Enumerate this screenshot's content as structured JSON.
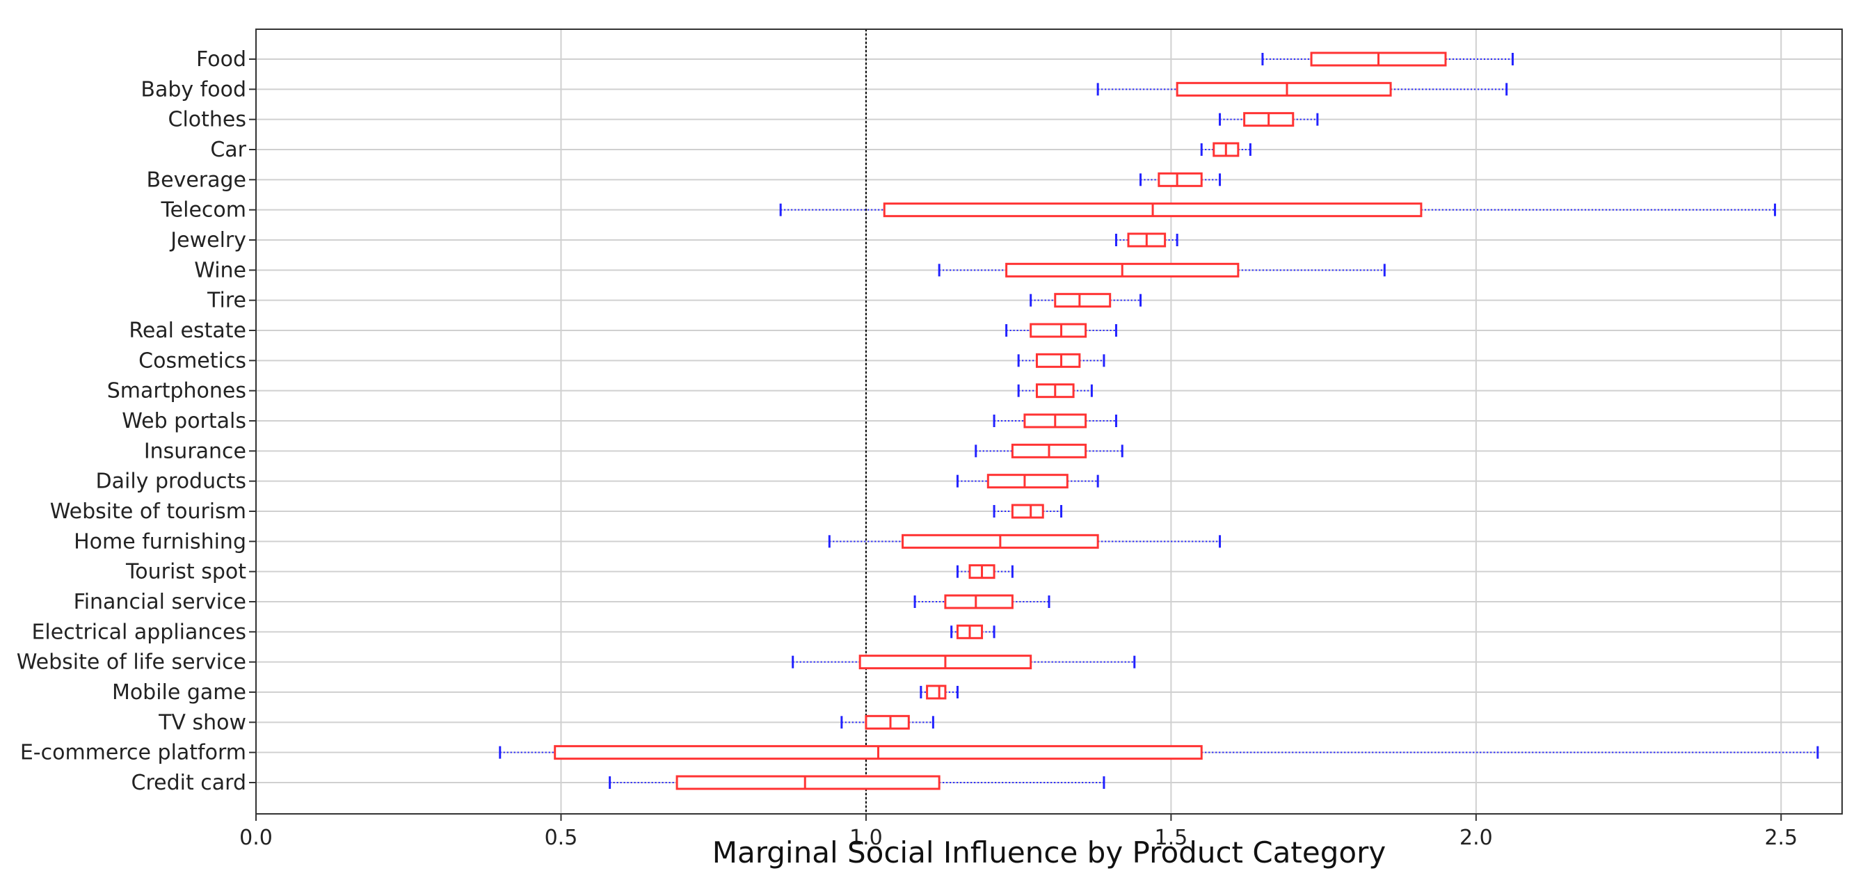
{
  "chart_data": {
    "type": "boxplot",
    "orientation": "horizontal",
    "xlabel": "Marginal Social Influence by Product Category",
    "ylabel": "",
    "xlim": [
      0.0,
      2.6
    ],
    "xticks": [
      0.0,
      0.5,
      1.0,
      1.5,
      2.0,
      2.5
    ],
    "xtick_labels": [
      "0.0",
      "0.5",
      "1.0",
      "1.5",
      "2.0",
      "2.5"
    ],
    "reference_line": 1.0,
    "grid": true,
    "colors": {
      "box": "#ff3333",
      "whisker": "#2222ff",
      "reference": "#000000",
      "grid": "#d0d0d0"
    },
    "categories": [
      {
        "label": "Food",
        "whislo": 1.65,
        "q1": 1.73,
        "med": 1.84,
        "q3": 1.95,
        "whishi": 2.06
      },
      {
        "label": "Baby food",
        "whislo": 1.38,
        "q1": 1.51,
        "med": 1.69,
        "q3": 1.86,
        "whishi": 2.05
      },
      {
        "label": "Clothes",
        "whislo": 1.58,
        "q1": 1.62,
        "med": 1.66,
        "q3": 1.7,
        "whishi": 1.74
      },
      {
        "label": "Car",
        "whislo": 1.55,
        "q1": 1.57,
        "med": 1.59,
        "q3": 1.61,
        "whishi": 1.63
      },
      {
        "label": "Beverage",
        "whislo": 1.45,
        "q1": 1.48,
        "med": 1.51,
        "q3": 1.55,
        "whishi": 1.58
      },
      {
        "label": "Telecom",
        "whislo": 0.86,
        "q1": 1.03,
        "med": 1.47,
        "q3": 1.91,
        "whishi": 2.49
      },
      {
        "label": "Jewelry",
        "whislo": 1.41,
        "q1": 1.43,
        "med": 1.46,
        "q3": 1.49,
        "whishi": 1.51
      },
      {
        "label": "Wine",
        "whislo": 1.12,
        "q1": 1.23,
        "med": 1.42,
        "q3": 1.61,
        "whishi": 1.85
      },
      {
        "label": "Tire",
        "whislo": 1.27,
        "q1": 1.31,
        "med": 1.35,
        "q3": 1.4,
        "whishi": 1.45
      },
      {
        "label": "Real estate",
        "whislo": 1.23,
        "q1": 1.27,
        "med": 1.32,
        "q3": 1.36,
        "whishi": 1.41
      },
      {
        "label": "Cosmetics",
        "whislo": 1.25,
        "q1": 1.28,
        "med": 1.32,
        "q3": 1.35,
        "whishi": 1.39
      },
      {
        "label": "Smartphones",
        "whislo": 1.25,
        "q1": 1.28,
        "med": 1.31,
        "q3": 1.34,
        "whishi": 1.37
      },
      {
        "label": "Web portals",
        "whislo": 1.21,
        "q1": 1.26,
        "med": 1.31,
        "q3": 1.36,
        "whishi": 1.41
      },
      {
        "label": "Insurance",
        "whislo": 1.18,
        "q1": 1.24,
        "med": 1.3,
        "q3": 1.36,
        "whishi": 1.42
      },
      {
        "label": "Daily products",
        "whislo": 1.15,
        "q1": 1.2,
        "med": 1.26,
        "q3": 1.33,
        "whishi": 1.38
      },
      {
        "label": "Website of tourism",
        "whislo": 1.21,
        "q1": 1.24,
        "med": 1.27,
        "q3": 1.29,
        "whishi": 1.32
      },
      {
        "label": "Home furnishing",
        "whislo": 0.94,
        "q1": 1.06,
        "med": 1.22,
        "q3": 1.38,
        "whishi": 1.58
      },
      {
        "label": "Tourist spot",
        "whislo": 1.15,
        "q1": 1.17,
        "med": 1.19,
        "q3": 1.21,
        "whishi": 1.24
      },
      {
        "label": "Financial service",
        "whislo": 1.08,
        "q1": 1.13,
        "med": 1.18,
        "q3": 1.24,
        "whishi": 1.3
      },
      {
        "label": "Electrical appliances",
        "whislo": 1.14,
        "q1": 1.15,
        "med": 1.17,
        "q3": 1.19,
        "whishi": 1.21
      },
      {
        "label": "Website of life service",
        "whislo": 0.88,
        "q1": 0.99,
        "med": 1.13,
        "q3": 1.27,
        "whishi": 1.44
      },
      {
        "label": "Mobile game",
        "whislo": 1.09,
        "q1": 1.1,
        "med": 1.12,
        "q3": 1.13,
        "whishi": 1.15
      },
      {
        "label": "TV show",
        "whislo": 0.96,
        "q1": 1.0,
        "med": 1.04,
        "q3": 1.07,
        "whishi": 1.11
      },
      {
        "label": "E-commerce platform",
        "whislo": 0.4,
        "q1": 0.49,
        "med": 1.02,
        "q3": 1.55,
        "whishi": 2.56
      },
      {
        "label": "Credit card",
        "whislo": 0.58,
        "q1": 0.69,
        "med": 0.9,
        "q3": 1.12,
        "whishi": 1.39
      }
    ]
  }
}
